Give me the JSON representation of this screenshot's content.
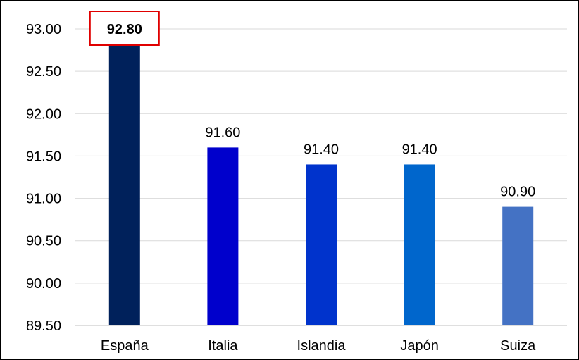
{
  "chart_data": {
    "type": "bar",
    "categories": [
      "España",
      "Italia",
      "Islandia",
      "Japón",
      "Suiza"
    ],
    "values": [
      92.8,
      91.6,
      91.4,
      91.4,
      90.9
    ],
    "value_labels": [
      "92.80",
      "91.60",
      "91.40",
      "91.40",
      "90.90"
    ],
    "ylim": [
      89.5,
      93.0
    ],
    "y_ticks": [
      89.5,
      90.0,
      90.5,
      91.0,
      91.5,
      92.0,
      92.5,
      93.0
    ],
    "y_tick_labels": [
      "89.50",
      "90.00",
      "90.50",
      "91.00",
      "91.50",
      "92.00",
      "92.50",
      "93.00"
    ],
    "bar_colors": [
      "#00215B",
      "#0000CC",
      "#0033CC",
      "#0066CC",
      "#4472C4"
    ],
    "highlight_index": 0,
    "highlight_box_color": "#E00000",
    "grid": true,
    "grid_color": "#D9D9D9",
    "title": "",
    "xlabel": "",
    "ylabel": ""
  }
}
